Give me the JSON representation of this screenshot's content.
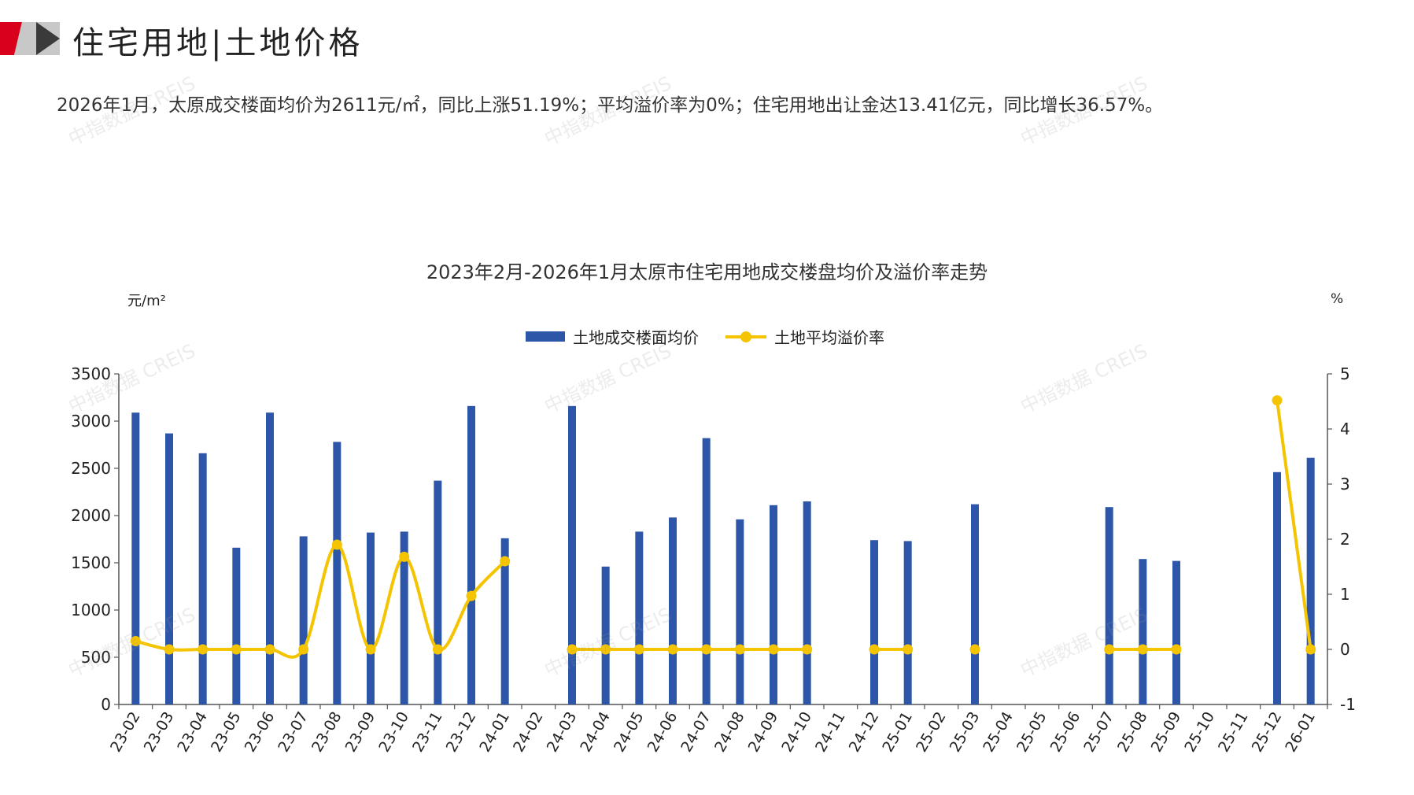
{
  "header": {
    "title": "住宅用地|土地价格",
    "summary": "2026年1月，太原成交楼面均价为2611元/㎡，同比上涨51.19%；平均溢价率为0%；住宅用地出让金达13.41亿元，同比增长36.57%。"
  },
  "watermark": "中指数据 CREIS",
  "colors": {
    "brand_red": "#d9001b",
    "bar": "#2e56a8",
    "line": "#f5c400"
  },
  "chart_data": {
    "type": "bar",
    "title": "2023年2月-2026年1月太原市住宅用地成交楼盘均价及溢价率走势",
    "ylabel": "元/m²",
    "y2label": "%",
    "ylim": [
      0,
      3500
    ],
    "y2lim": [
      -1,
      5
    ],
    "y_ticks": [
      "0",
      "500",
      "1000",
      "1500",
      "2000",
      "2500",
      "3000",
      "3500"
    ],
    "y2_ticks": [
      "-1",
      "0",
      "1",
      "2",
      "3",
      "4",
      "5"
    ],
    "legend": "top-center",
    "grid": false,
    "categories": [
      "23-02",
      "23-03",
      "23-04",
      "23-05",
      "23-06",
      "23-07",
      "23-08",
      "23-09",
      "23-10",
      "23-11",
      "23-12",
      "24-01",
      "24-02",
      "24-03",
      "24-04",
      "24-05",
      "24-06",
      "24-07",
      "24-08",
      "24-09",
      "24-10",
      "24-11",
      "24-12",
      "25-01",
      "25-02",
      "25-03",
      "25-04",
      "25-05",
      "25-06",
      "25-07",
      "25-08",
      "25-09",
      "25-10",
      "25-11",
      "25-12",
      "26-01"
    ],
    "series": [
      {
        "name": "土地成交楼面均价",
        "type": "bar",
        "axis": "left",
        "values": [
          3090,
          2870,
          2660,
          1660,
          3090,
          1780,
          2780,
          1820,
          1830,
          2370,
          3160,
          1760,
          null,
          3160,
          1460,
          1830,
          1980,
          2820,
          1960,
          2110,
          2150,
          null,
          1740,
          1730,
          null,
          2120,
          null,
          null,
          null,
          2090,
          1540,
          1520,
          null,
          null,
          2460,
          2611
        ]
      },
      {
        "name": "土地平均溢价率",
        "type": "line",
        "axis": "right",
        "values": [
          0.15,
          0,
          0,
          0,
          0,
          0,
          1.9,
          0,
          1.68,
          0,
          0.97,
          1.6,
          null,
          0,
          0,
          0,
          0,
          0,
          0,
          0,
          0,
          null,
          0,
          0,
          null,
          0,
          null,
          null,
          null,
          0,
          0,
          0,
          null,
          null,
          4.52,
          0
        ]
      }
    ]
  }
}
